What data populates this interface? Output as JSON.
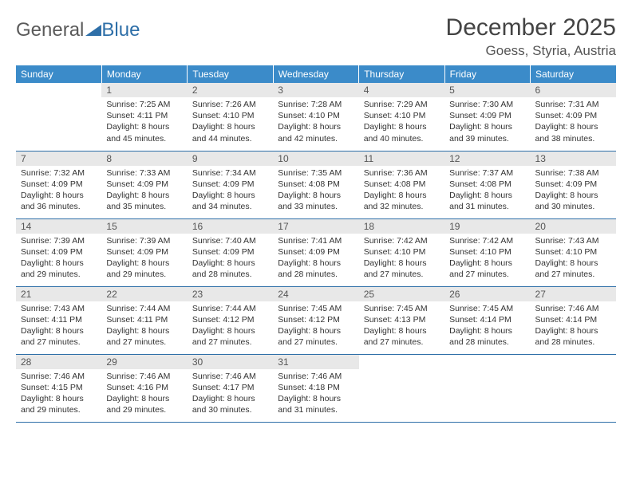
{
  "logo": {
    "text1": "General",
    "text2": "Blue",
    "color1": "#6a6a6a",
    "color2": "#2e6fa8"
  },
  "title": "December 2025",
  "location": "Goess, Styria, Austria",
  "colors": {
    "header_bg": "#3b8bc9",
    "header_text": "#ffffff",
    "daynum_bg": "#e8e8e8",
    "cell_border": "#2e6fa8"
  },
  "weekdays": [
    "Sunday",
    "Monday",
    "Tuesday",
    "Wednesday",
    "Thursday",
    "Friday",
    "Saturday"
  ],
  "weeks": [
    [
      null,
      {
        "n": "1",
        "sr": "7:25 AM",
        "ss": "4:11 PM",
        "dl": "8 hours and 45 minutes."
      },
      {
        "n": "2",
        "sr": "7:26 AM",
        "ss": "4:10 PM",
        "dl": "8 hours and 44 minutes."
      },
      {
        "n": "3",
        "sr": "7:28 AM",
        "ss": "4:10 PM",
        "dl": "8 hours and 42 minutes."
      },
      {
        "n": "4",
        "sr": "7:29 AM",
        "ss": "4:10 PM",
        "dl": "8 hours and 40 minutes."
      },
      {
        "n": "5",
        "sr": "7:30 AM",
        "ss": "4:09 PM",
        "dl": "8 hours and 39 minutes."
      },
      {
        "n": "6",
        "sr": "7:31 AM",
        "ss": "4:09 PM",
        "dl": "8 hours and 38 minutes."
      }
    ],
    [
      {
        "n": "7",
        "sr": "7:32 AM",
        "ss": "4:09 PM",
        "dl": "8 hours and 36 minutes."
      },
      {
        "n": "8",
        "sr": "7:33 AM",
        "ss": "4:09 PM",
        "dl": "8 hours and 35 minutes."
      },
      {
        "n": "9",
        "sr": "7:34 AM",
        "ss": "4:09 PM",
        "dl": "8 hours and 34 minutes."
      },
      {
        "n": "10",
        "sr": "7:35 AM",
        "ss": "4:08 PM",
        "dl": "8 hours and 33 minutes."
      },
      {
        "n": "11",
        "sr": "7:36 AM",
        "ss": "4:08 PM",
        "dl": "8 hours and 32 minutes."
      },
      {
        "n": "12",
        "sr": "7:37 AM",
        "ss": "4:08 PM",
        "dl": "8 hours and 31 minutes."
      },
      {
        "n": "13",
        "sr": "7:38 AM",
        "ss": "4:09 PM",
        "dl": "8 hours and 30 minutes."
      }
    ],
    [
      {
        "n": "14",
        "sr": "7:39 AM",
        "ss": "4:09 PM",
        "dl": "8 hours and 29 minutes."
      },
      {
        "n": "15",
        "sr": "7:39 AM",
        "ss": "4:09 PM",
        "dl": "8 hours and 29 minutes."
      },
      {
        "n": "16",
        "sr": "7:40 AM",
        "ss": "4:09 PM",
        "dl": "8 hours and 28 minutes."
      },
      {
        "n": "17",
        "sr": "7:41 AM",
        "ss": "4:09 PM",
        "dl": "8 hours and 28 minutes."
      },
      {
        "n": "18",
        "sr": "7:42 AM",
        "ss": "4:10 PM",
        "dl": "8 hours and 27 minutes."
      },
      {
        "n": "19",
        "sr": "7:42 AM",
        "ss": "4:10 PM",
        "dl": "8 hours and 27 minutes."
      },
      {
        "n": "20",
        "sr": "7:43 AM",
        "ss": "4:10 PM",
        "dl": "8 hours and 27 minutes."
      }
    ],
    [
      {
        "n": "21",
        "sr": "7:43 AM",
        "ss": "4:11 PM",
        "dl": "8 hours and 27 minutes."
      },
      {
        "n": "22",
        "sr": "7:44 AM",
        "ss": "4:11 PM",
        "dl": "8 hours and 27 minutes."
      },
      {
        "n": "23",
        "sr": "7:44 AM",
        "ss": "4:12 PM",
        "dl": "8 hours and 27 minutes."
      },
      {
        "n": "24",
        "sr": "7:45 AM",
        "ss": "4:12 PM",
        "dl": "8 hours and 27 minutes."
      },
      {
        "n": "25",
        "sr": "7:45 AM",
        "ss": "4:13 PM",
        "dl": "8 hours and 27 minutes."
      },
      {
        "n": "26",
        "sr": "7:45 AM",
        "ss": "4:14 PM",
        "dl": "8 hours and 28 minutes."
      },
      {
        "n": "27",
        "sr": "7:46 AM",
        "ss": "4:14 PM",
        "dl": "8 hours and 28 minutes."
      }
    ],
    [
      {
        "n": "28",
        "sr": "7:46 AM",
        "ss": "4:15 PM",
        "dl": "8 hours and 29 minutes."
      },
      {
        "n": "29",
        "sr": "7:46 AM",
        "ss": "4:16 PM",
        "dl": "8 hours and 29 minutes."
      },
      {
        "n": "30",
        "sr": "7:46 AM",
        "ss": "4:17 PM",
        "dl": "8 hours and 30 minutes."
      },
      {
        "n": "31",
        "sr": "7:46 AM",
        "ss": "4:18 PM",
        "dl": "8 hours and 31 minutes."
      },
      null,
      null,
      null
    ]
  ],
  "labels": {
    "sunrise": "Sunrise: ",
    "sunset": "Sunset: ",
    "daylight": "Daylight: "
  }
}
